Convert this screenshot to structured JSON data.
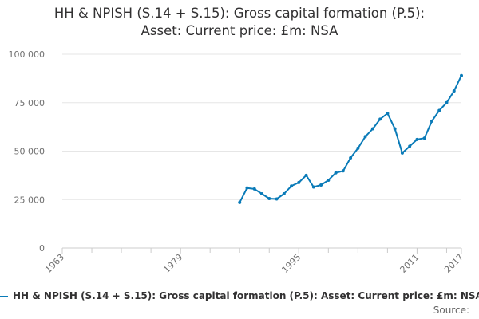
{
  "chart_data": {
    "type": "line",
    "title_lines": [
      "HH & NPISH (S.14 + S.15): Gross capital formation (P.5):",
      "Asset: Current price: £m: NSA"
    ],
    "xlabel": "",
    "ylabel": "",
    "xlim": [
      1963,
      2017
    ],
    "ylim": [
      0,
      100000
    ],
    "y_ticks": [
      0,
      25000,
      50000,
      75000,
      100000
    ],
    "y_tick_labels": [
      "0",
      "25 000",
      "50 000",
      "75 000",
      "100 000"
    ],
    "x_ticks": [
      1963,
      1979,
      1995,
      2011,
      2017
    ],
    "x_tick_labels": [
      "1963",
      "1979",
      "1995",
      "2011",
      "2017"
    ],
    "grid": "horizontal",
    "legend_position": "bottom",
    "series": [
      {
        "name": "HH & NPISH (S.14 + S.15): Gross capital formation (P.5): Asset: Current price: £m: NSA",
        "color": "#0a7bb8",
        "x": [
          1987,
          1988,
          1989,
          1990,
          1991,
          1992,
          1993,
          1994,
          1995,
          1996,
          1997,
          1998,
          1999,
          2000,
          2001,
          2002,
          2003,
          2004,
          2005,
          2006,
          2007,
          2008,
          2009,
          2010,
          2011,
          2012,
          2013,
          2014,
          2015,
          2016,
          2017
        ],
        "values": [
          23500,
          31000,
          30500,
          28000,
          25500,
          25300,
          28000,
          32000,
          33800,
          37500,
          31500,
          32500,
          35000,
          38800,
          39800,
          46500,
          51500,
          57500,
          61500,
          66500,
          69500,
          61500,
          49000,
          52500,
          56000,
          56700,
          65500,
          71000,
          75000,
          81000,
          89000
        ]
      }
    ]
  },
  "legend": {
    "label": "HH & NPISH (S.14 + S.15): Gross capital formation (P.5): Asset: Current price: £m: NSA"
  },
  "source": {
    "label": "Source:"
  }
}
